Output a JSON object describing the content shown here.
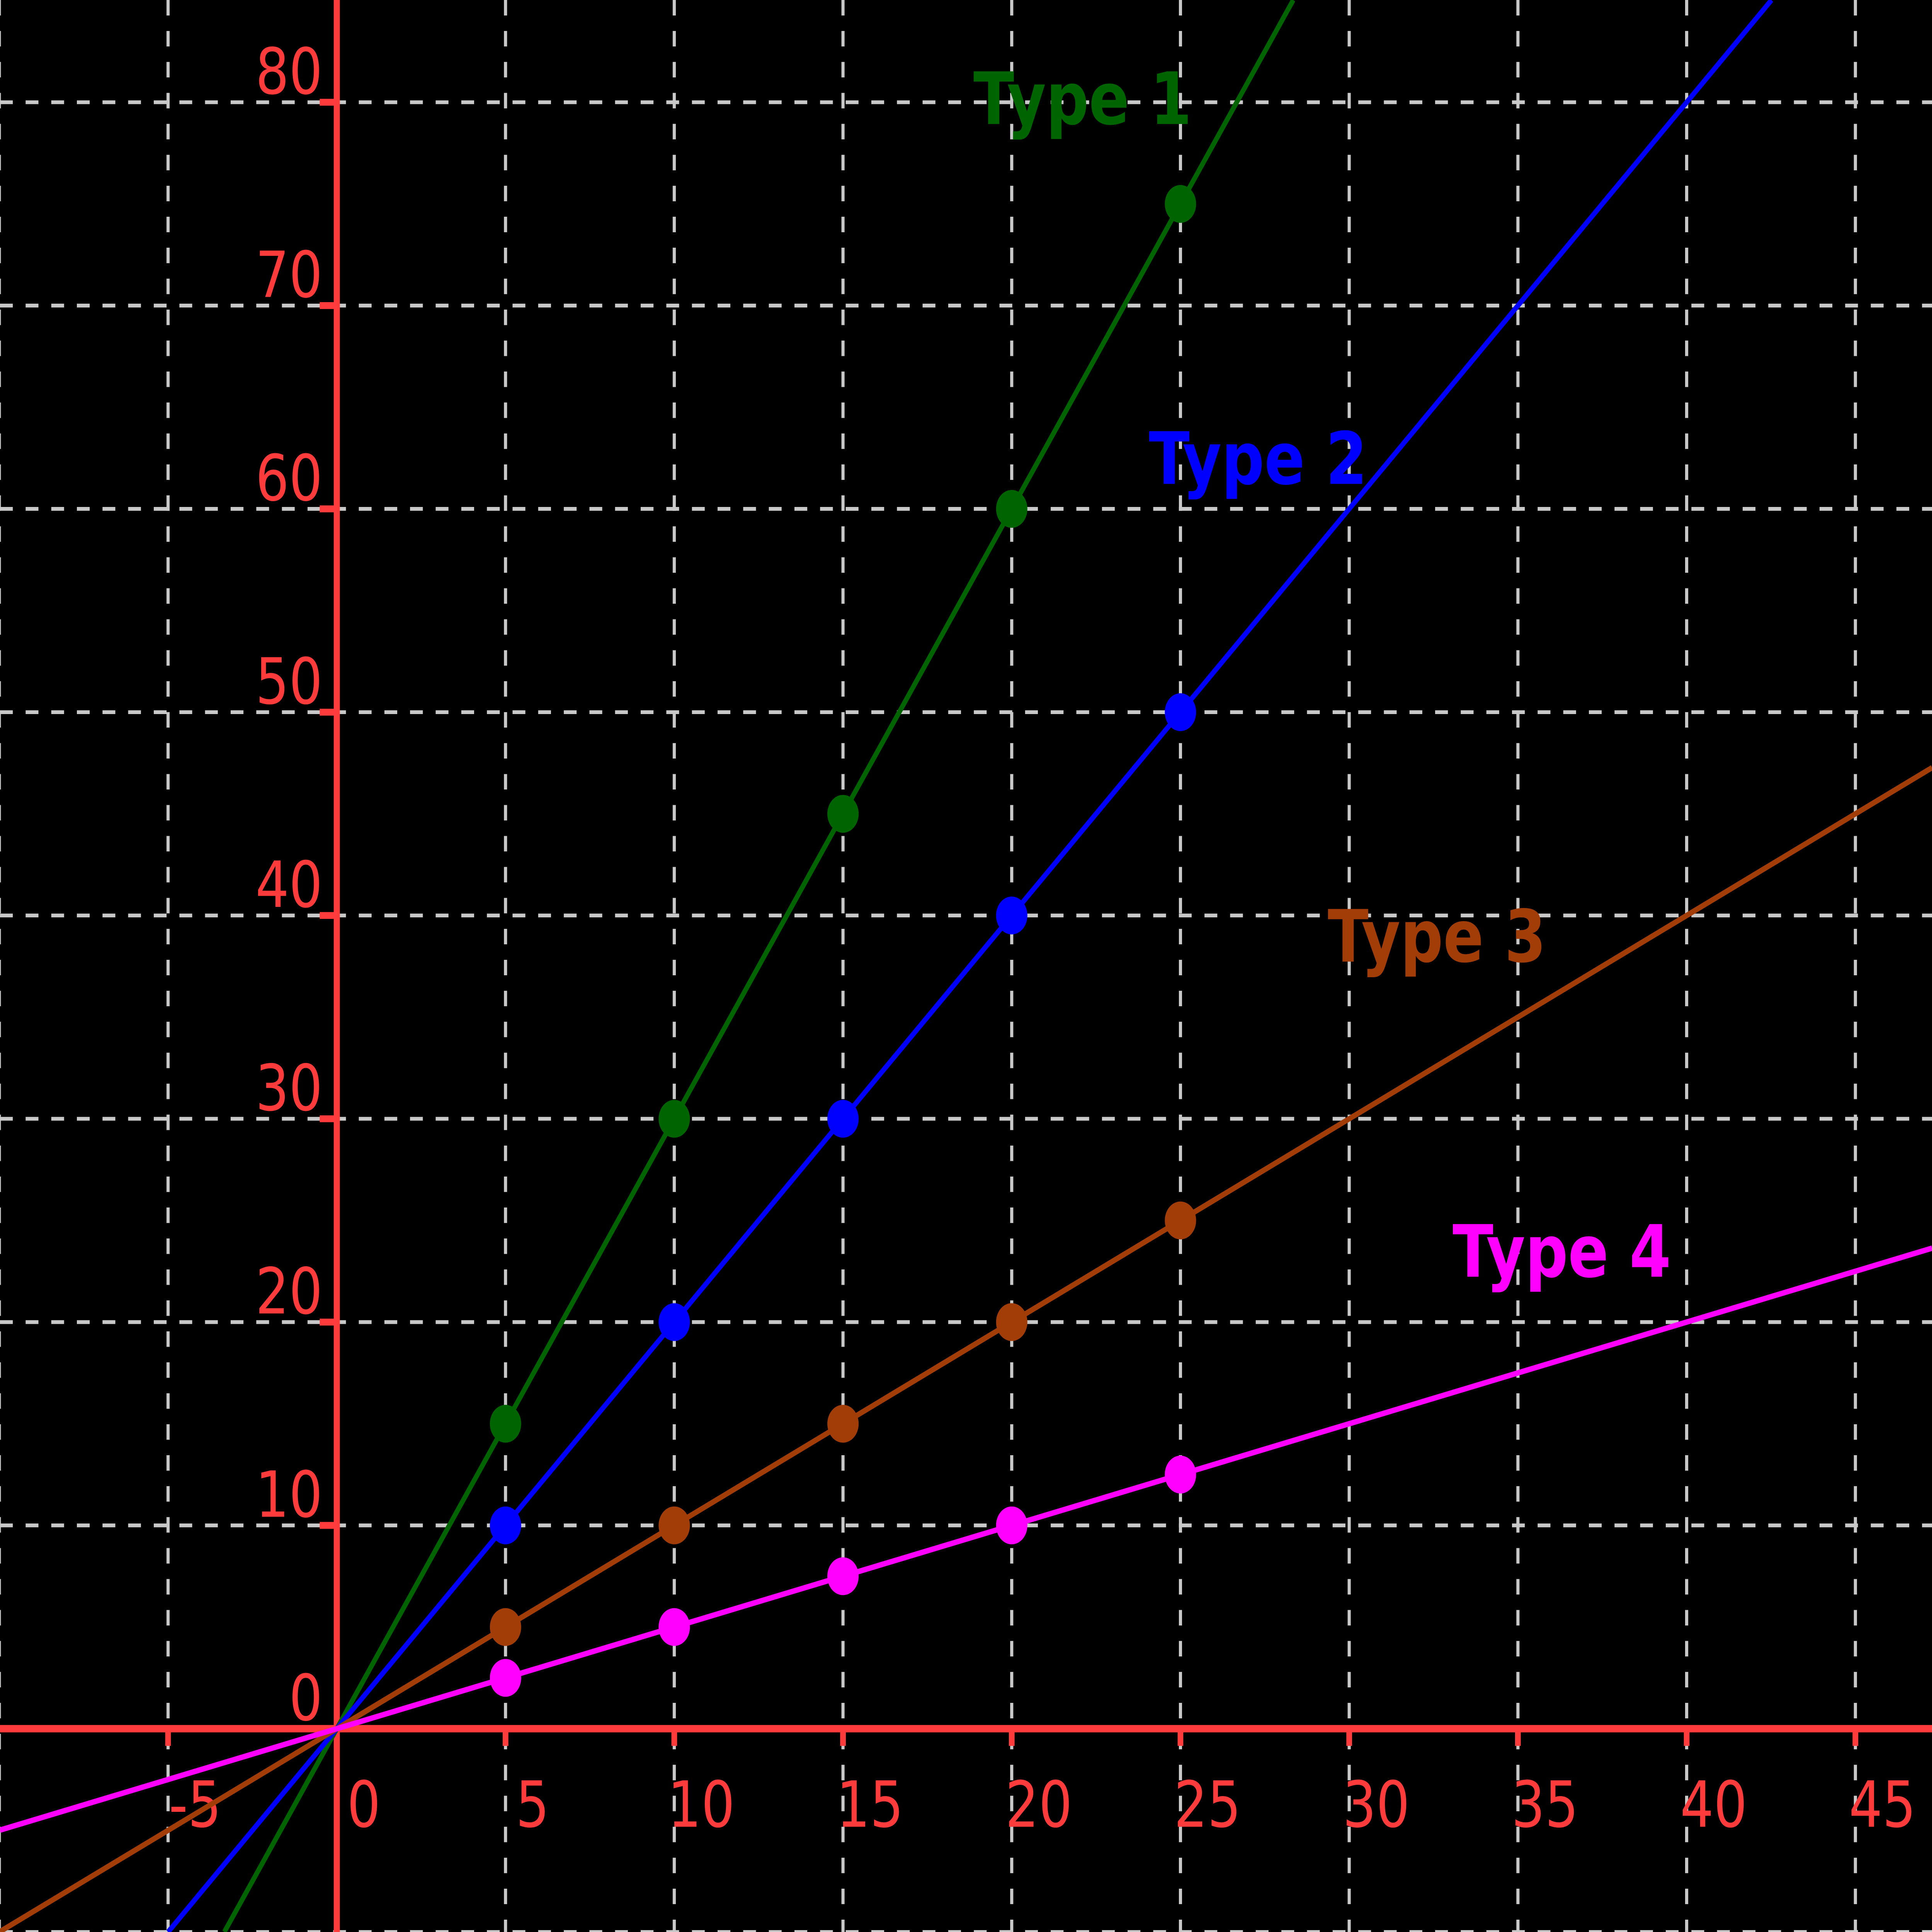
{
  "chart_data": {
    "type": "line",
    "title": "",
    "background_color": "#000000",
    "axis_color": "#ff3b3b",
    "grid_color": "#c8c8c8",
    "grid_style": "dashed",
    "legend": "none",
    "x_axis": {
      "ticks": [
        -5,
        0,
        5,
        10,
        15,
        20,
        25,
        30,
        35,
        40,
        45
      ],
      "gridlines": [
        -10,
        -5,
        5,
        10,
        15,
        20,
        25,
        30,
        35,
        40,
        45
      ],
      "range": [
        -9.98,
        47.27
      ]
    },
    "y_axis": {
      "ticks": [
        0,
        10,
        20,
        30,
        40,
        50,
        60,
        70,
        80
      ],
      "gridlines": [
        -10,
        10,
        20,
        30,
        40,
        50,
        60,
        70,
        80
      ],
      "range": [
        -10.0,
        85.03
      ]
    },
    "series": [
      {
        "name": "Type 1",
        "color": "#006400",
        "slope": 3,
        "x": [
          5,
          10,
          15,
          20,
          25
        ],
        "y": [
          15,
          30,
          45,
          60,
          75
        ],
        "label": {
          "text": "Type 1",
          "x": 22.1,
          "y": 80.2
        }
      },
      {
        "name": "Type 2",
        "color": "#0000ff",
        "slope": 2,
        "x": [
          5,
          10,
          15,
          20,
          25
        ],
        "y": [
          10,
          20,
          30,
          40,
          50
        ],
        "label": {
          "text": "Type 2",
          "x": 27.3,
          "y": 62.5
        }
      },
      {
        "name": "Type 3",
        "color": "#a33d08",
        "slope": 1,
        "x": [
          5,
          10,
          15,
          20,
          25
        ],
        "y": [
          5,
          10,
          15,
          20,
          25
        ],
        "label": {
          "text": "Type 3",
          "x": 32.6,
          "y": 39.0
        }
      },
      {
        "name": "Type 4",
        "color": "#ff00ff",
        "slope": 0.5,
        "x": [
          5,
          10,
          15,
          20,
          25
        ],
        "y": [
          2.5,
          5,
          7.5,
          10,
          12.5
        ],
        "label": {
          "text": "Type 4",
          "x": 36.3,
          "y": 23.5
        }
      }
    ]
  }
}
